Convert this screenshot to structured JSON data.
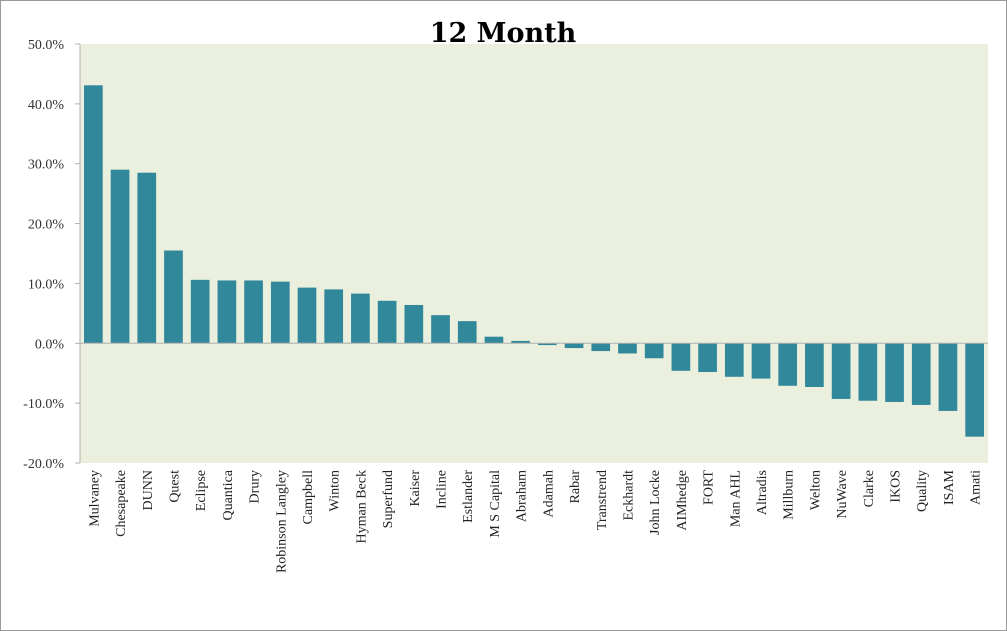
{
  "chart_data": {
    "type": "bar",
    "title": "12 Month",
    "xlabel": "",
    "ylabel": "",
    "ylim": [
      -20,
      50
    ],
    "yticks": [
      "50.0%",
      "40.0%",
      "30.0%",
      "20.0%",
      "10.0%",
      "0.0%",
      "-10.0%",
      "-20.0%"
    ],
    "ytick_values": [
      50,
      40,
      30,
      20,
      10,
      0,
      -10,
      -20
    ],
    "grid": false,
    "legend": "none",
    "colors": {
      "bar": "#31889b",
      "plot_background": "#ebf0de",
      "axis": "#b0b0b0"
    },
    "categories": [
      "Mulvaney",
      "Chesapeake",
      "DUNN",
      "Quest",
      "Eclipse",
      "Quantica",
      "Drury",
      "Robinson Langley",
      "Campbell",
      "Winton",
      "Hyman Beck",
      "Superfund",
      "Kaiser",
      "Incline",
      "Estlander",
      "M S Capital",
      "Abraham",
      "Adamah",
      "Rabar",
      "Transtrend",
      "Eckhardt",
      "John Locke",
      "AIMhedge",
      "FORT",
      "Man AHL",
      "Altradis",
      "Millburn",
      "Welton",
      "NuWave",
      "Clarke",
      "IKOS",
      "Quality",
      "ISAM",
      "Amati"
    ],
    "values": [
      43.1,
      29.0,
      28.5,
      15.5,
      10.6,
      10.5,
      10.5,
      10.3,
      9.3,
      9.0,
      8.3,
      7.1,
      6.4,
      4.7,
      3.7,
      1.1,
      0.4,
      -0.3,
      -0.8,
      -1.3,
      -1.7,
      -2.5,
      -4.6,
      -4.8,
      -5.6,
      -5.9,
      -7.1,
      -7.3,
      -9.3,
      -9.6,
      -9.8,
      -10.3,
      -11.3,
      -15.6
    ]
  }
}
